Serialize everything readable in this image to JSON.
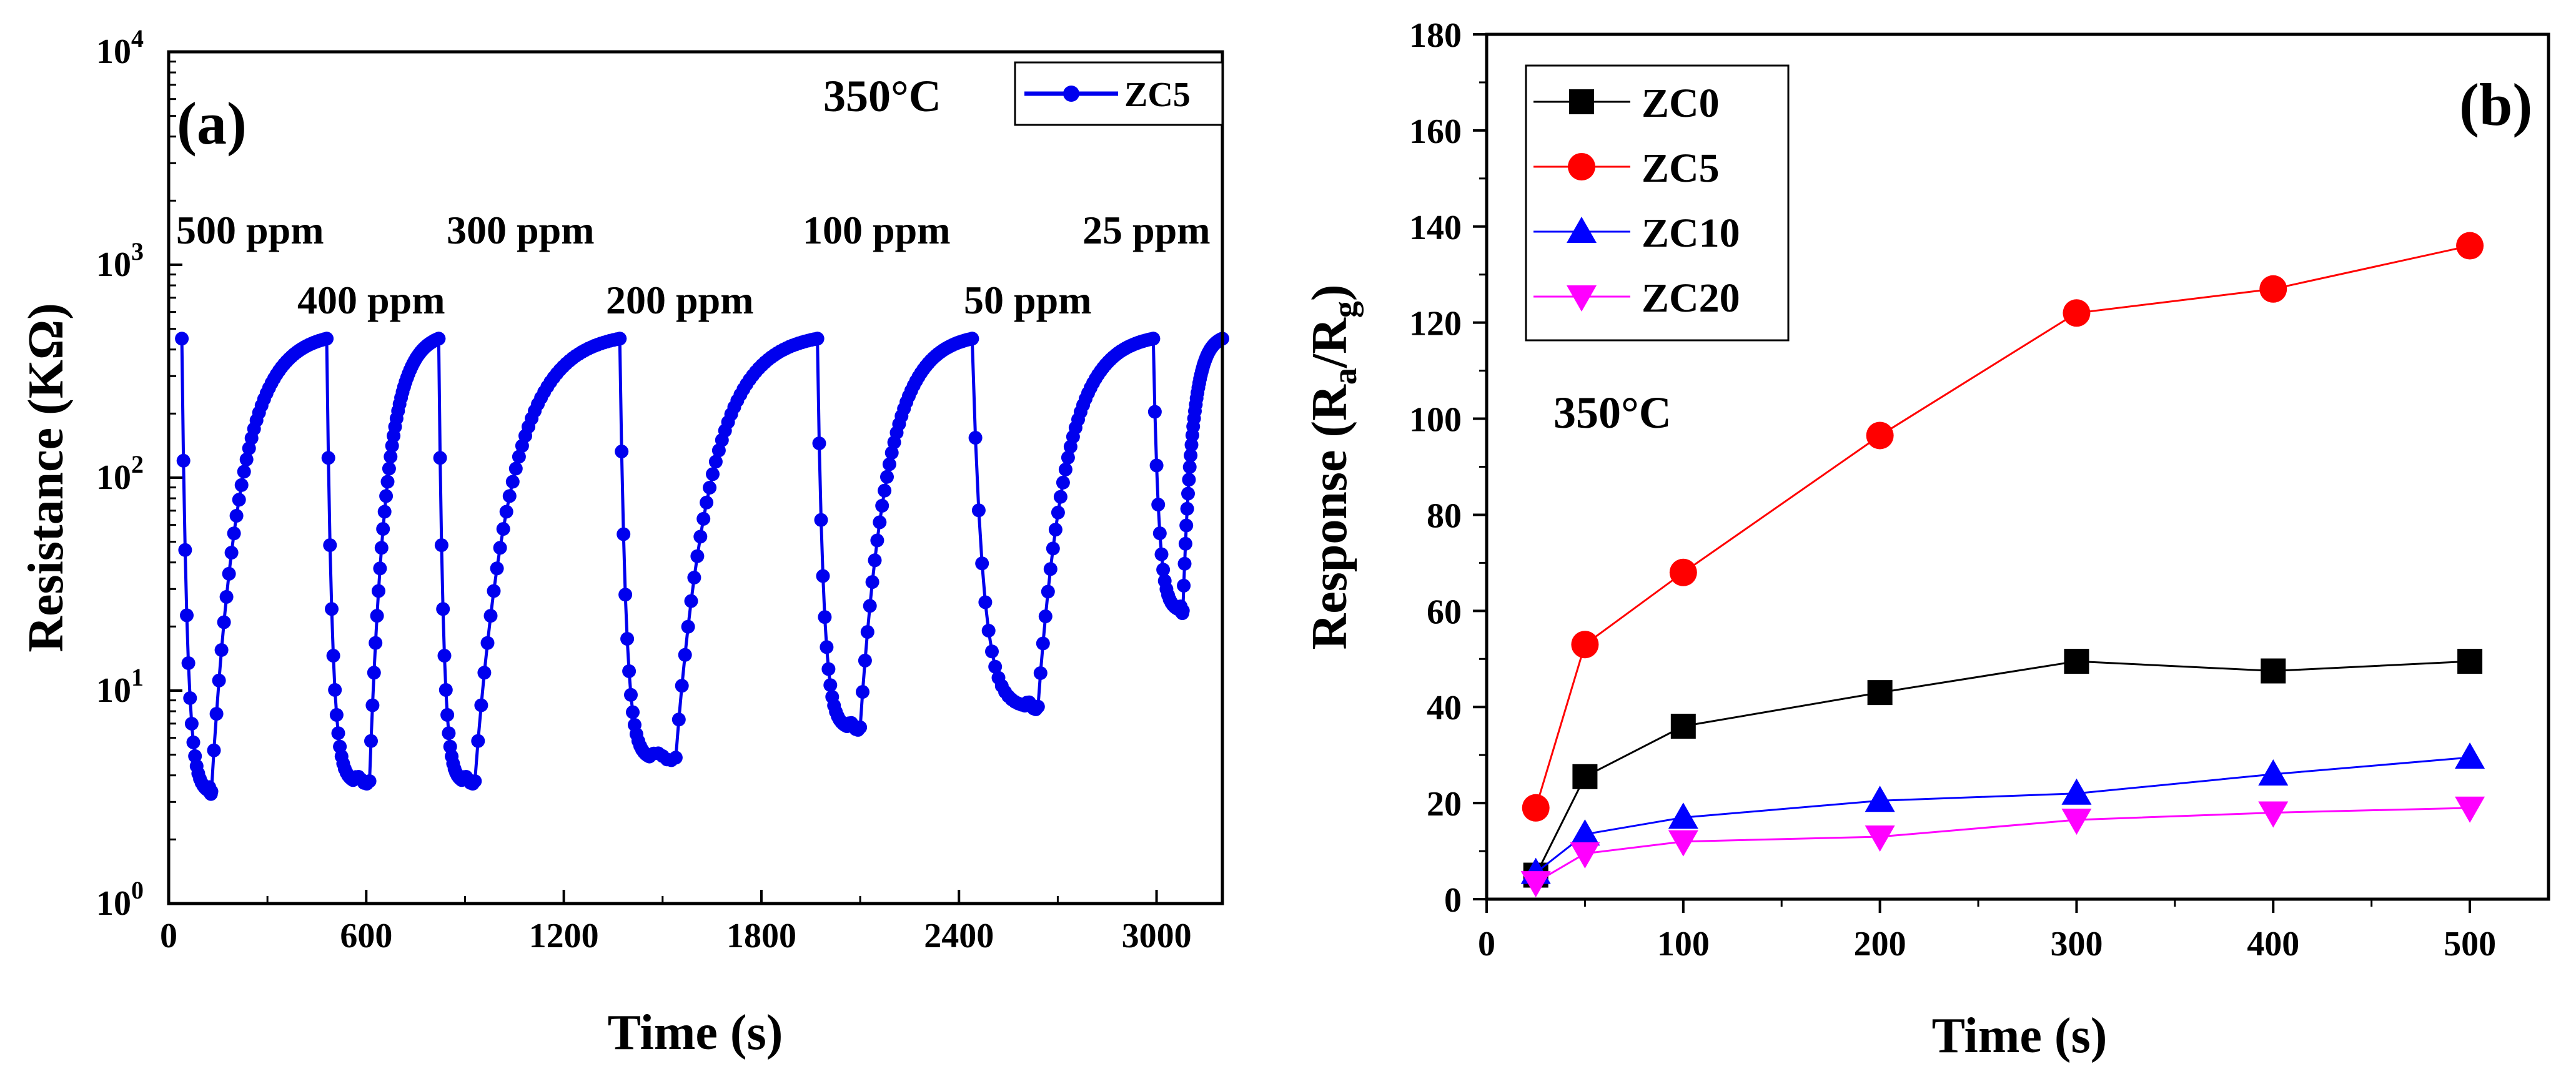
{
  "chart_data": [
    {
      "type": "line",
      "panel_label": "(a)",
      "title": "",
      "xlabel": "Time (s)",
      "ylabel": "Resistance (KΩ)",
      "yscale": "log",
      "xlim": [
        0,
        3200
      ],
      "ylim": [
        1,
        10000
      ],
      "xticks": [
        "0",
        "600",
        "1200",
        "1800",
        "2400",
        "3000"
      ],
      "yticks": [
        {
          "base": "10",
          "exp": "0"
        },
        {
          "base": "10",
          "exp": "1"
        },
        {
          "base": "10",
          "exp": "2"
        },
        {
          "base": "10",
          "exp": "3"
        },
        {
          "base": "10",
          "exp": "4"
        }
      ],
      "temperature_label": "350°C",
      "legend": [
        "ZC5"
      ],
      "series_color": "#0000ee",
      "annotations": [
        "500 ppm",
        "400 ppm",
        "300 ppm",
        "200 ppm",
        "100 ppm",
        "50 ppm",
        "25 ppm"
      ],
      "cycles": [
        {
          "ppm": 500,
          "gas_in": 40,
          "floor": 3.4,
          "recover": 130,
          "end": 480,
          "t_min": 120
        },
        {
          "ppm": 400,
          "gas_in": 480,
          "floor": 3.8,
          "recover": 610,
          "end": 820,
          "t_min": 560
        },
        {
          "ppm": 300,
          "gas_in": 820,
          "floor": 3.8,
          "recover": 930,
          "end": 1370,
          "t_min": 890
        },
        {
          "ppm": 200,
          "gas_in": 1370,
          "floor": 4.9,
          "recover": 1540,
          "end": 1970,
          "t_min": 1460
        },
        {
          "ppm": 100,
          "gas_in": 1970,
          "floor": 6.8,
          "recover": 2100,
          "end": 2440,
          "t_min": 2060
        },
        {
          "ppm": 50,
          "gas_in": 2440,
          "floor": 8.5,
          "recover": 2640,
          "end": 2990,
          "t_min": 2600
        },
        {
          "ppm": 25,
          "gas_in": 2990,
          "floor": 24,
          "recover": 3080,
          "end": 3200,
          "t_min": 3070
        }
      ],
      "baseline_resistance": 450
    },
    {
      "type": "line",
      "panel_label": "(b)",
      "title": "",
      "xlabel": "Time (s)",
      "ylabel_main": "Response (R",
      "ylabel_sub1": "a",
      "ylabel_mid": "/R",
      "ylabel_sub2": "g",
      "ylabel_end": ")",
      "xlim": [
        0,
        540
      ],
      "ylim": [
        0,
        180
      ],
      "xticks": [
        "0",
        "100",
        "200",
        "300",
        "400",
        "500"
      ],
      "yticks": [
        "0",
        "20",
        "40",
        "60",
        "80",
        "100",
        "120",
        "140",
        "160",
        "180"
      ],
      "temperature_label": "350°C",
      "x": [
        25,
        50,
        100,
        200,
        300,
        400,
        500
      ],
      "series": [
        {
          "name": "ZC0",
          "color": "#000000",
          "marker": "square",
          "values": [
            5,
            25.5,
            36,
            43,
            49.5,
            47.5,
            49.5
          ]
        },
        {
          "name": "ZC5",
          "color": "#ff0000",
          "marker": "circle",
          "values": [
            19,
            53,
            68,
            96.5,
            122,
            127,
            136
          ]
        },
        {
          "name": "ZC10",
          "color": "#0000ff",
          "marker": "triangle-up",
          "values": [
            5.5,
            13.5,
            17,
            20.5,
            22,
            26,
            29.5
          ]
        },
        {
          "name": "ZC20",
          "color": "#ff00ff",
          "marker": "triangle-down",
          "values": [
            3.5,
            9.5,
            12,
            13,
            16.5,
            18,
            19
          ]
        }
      ]
    }
  ]
}
